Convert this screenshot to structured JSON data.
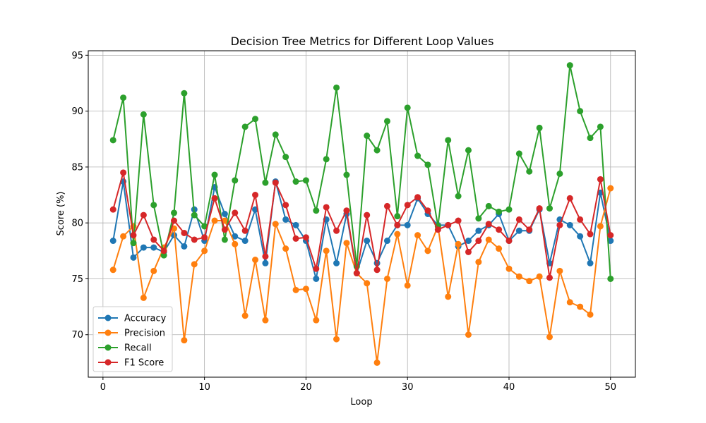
{
  "chart_data": {
    "type": "line",
    "title": "Decision Tree Metrics for Different Loop Values",
    "xlabel": "Loop",
    "ylabel": "Score (%)",
    "xlim": [
      -1.45,
      52.45
    ],
    "ylim": [
      66.2,
      95.4
    ],
    "xticks": [
      0,
      10,
      20,
      30,
      40,
      50
    ],
    "yticks": [
      70,
      75,
      80,
      85,
      90,
      95
    ],
    "grid": true,
    "legend_position": "lower-left",
    "x": [
      1,
      2,
      3,
      4,
      5,
      6,
      7,
      8,
      9,
      10,
      11,
      12,
      13,
      14,
      15,
      16,
      17,
      18,
      19,
      20,
      21,
      22,
      23,
      24,
      25,
      26,
      27,
      28,
      29,
      30,
      31,
      32,
      33,
      34,
      35,
      36,
      37,
      38,
      39,
      40,
      41,
      42,
      43,
      44,
      45,
      46,
      47,
      48,
      49,
      50
    ],
    "series": [
      {
        "name": "Accuracy",
        "color": "#1f77b4",
        "values": [
          78.4,
          83.7,
          76.9,
          77.8,
          77.8,
          77.4,
          78.9,
          77.9,
          81.2,
          78.4,
          83.2,
          80.8,
          78.8,
          78.4,
          81.2,
          76.4,
          83.7,
          80.3,
          79.8,
          78.4,
          75.0,
          80.3,
          76.4,
          80.8,
          75.5,
          78.4,
          76.4,
          78.4,
          79.8,
          79.8,
          82.2,
          80.8,
          79.8,
          79.8,
          77.9,
          78.4,
          79.3,
          79.8,
          80.8,
          78.4,
          79.3,
          79.3,
          81.2,
          76.4,
          80.3,
          79.8,
          78.8,
          76.4,
          82.7,
          78.4
        ]
      },
      {
        "name": "Precision",
        "color": "#ff7f0e",
        "values": [
          75.8,
          78.8,
          79.7,
          73.3,
          75.7,
          77.8,
          79.5,
          69.5,
          76.3,
          77.5,
          80.2,
          80.2,
          78.1,
          71.7,
          76.7,
          71.3,
          79.9,
          77.7,
          74.0,
          74.1,
          71.3,
          77.5,
          69.6,
          78.2,
          75.5,
          74.6,
          67.5,
          75.0,
          79.0,
          74.4,
          78.9,
          77.5,
          79.7,
          73.4,
          78.1,
          70.0,
          76.5,
          78.5,
          77.7,
          75.9,
          75.2,
          74.8,
          75.2,
          69.8,
          75.7,
          72.9,
          72.5,
          71.8,
          79.7,
          83.1
        ]
      },
      {
        "name": "Recall",
        "color": "#2ca02c",
        "values": [
          87.4,
          91.2,
          78.2,
          89.7,
          81.6,
          77.1,
          80.9,
          91.6,
          80.7,
          79.7,
          84.3,
          78.5,
          83.8,
          88.6,
          89.3,
          83.6,
          87.9,
          85.9,
          83.7,
          83.8,
          81.1,
          85.7,
          92.1,
          84.3,
          76.1,
          87.8,
          86.5,
          89.1,
          80.6,
          90.3,
          86.0,
          85.2,
          79.7,
          87.4,
          82.4,
          86.5,
          80.4,
          81.5,
          81.0,
          81.2,
          86.2,
          84.6,
          88.5,
          81.3,
          84.4,
          94.1,
          90.0,
          87.6,
          88.6,
          75.0
        ]
      },
      {
        "name": "F1 Score",
        "color": "#d62728",
        "values": [
          81.2,
          84.5,
          78.9,
          80.7,
          78.5,
          77.5,
          80.2,
          79.1,
          78.5,
          78.7,
          82.2,
          79.4,
          80.9,
          79.3,
          82.5,
          77.0,
          83.6,
          81.6,
          78.6,
          78.7,
          75.9,
          81.4,
          79.3,
          81.1,
          75.5,
          80.7,
          75.8,
          81.5,
          79.8,
          81.6,
          82.3,
          81.1,
          79.4,
          79.8,
          80.2,
          77.4,
          78.4,
          79.9,
          79.4,
          78.4,
          80.3,
          79.4,
          81.3,
          75.1,
          79.8,
          82.2,
          80.3,
          79.0,
          83.9,
          78.9
        ]
      }
    ]
  }
}
